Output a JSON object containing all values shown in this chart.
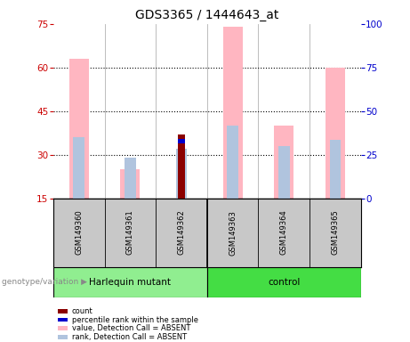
{
  "title": "GDS3365 / 1444643_at",
  "samples": [
    "GSM149360",
    "GSM149361",
    "GSM149362",
    "GSM149363",
    "GSM149364",
    "GSM149365"
  ],
  "ylim_left": [
    15,
    75
  ],
  "ylim_right": [
    0,
    100
  ],
  "yticks_left": [
    15,
    30,
    45,
    60,
    75
  ],
  "yticks_right": [
    0,
    25,
    50,
    75,
    100
  ],
  "pink_bar_tops": [
    63,
    25,
    15,
    74,
    40,
    60
  ],
  "lavender_bar_tops": [
    36,
    29,
    32,
    40,
    33,
    35
  ],
  "red_bar_tops": [
    15,
    15,
    37,
    15,
    15,
    15
  ],
  "blue_bar_bottoms": [
    15,
    15,
    34,
    15,
    15,
    15
  ],
  "blue_bar_tops": [
    15,
    15,
    35.5,
    15,
    15,
    15
  ],
  "bar_bottom": 15,
  "color_pink": "#FFB6C1",
  "color_lavender": "#B0C4DE",
  "color_red": "#8B0000",
  "color_blue": "#0000CD",
  "bg_color": "#FFFFFF",
  "left_tick_color": "#CC0000",
  "right_tick_color": "#0000CC",
  "sample_area_color": "#C8C8C8",
  "harlequin_color": "#90EE90",
  "control_color": "#44DD44",
  "harlequin_label": "Harlequin mutant",
  "control_label": "control",
  "genotype_label": "genotype/variation",
  "legend_items": [
    "count",
    "percentile rank within the sample",
    "value, Detection Call = ABSENT",
    "rank, Detection Call = ABSENT"
  ]
}
